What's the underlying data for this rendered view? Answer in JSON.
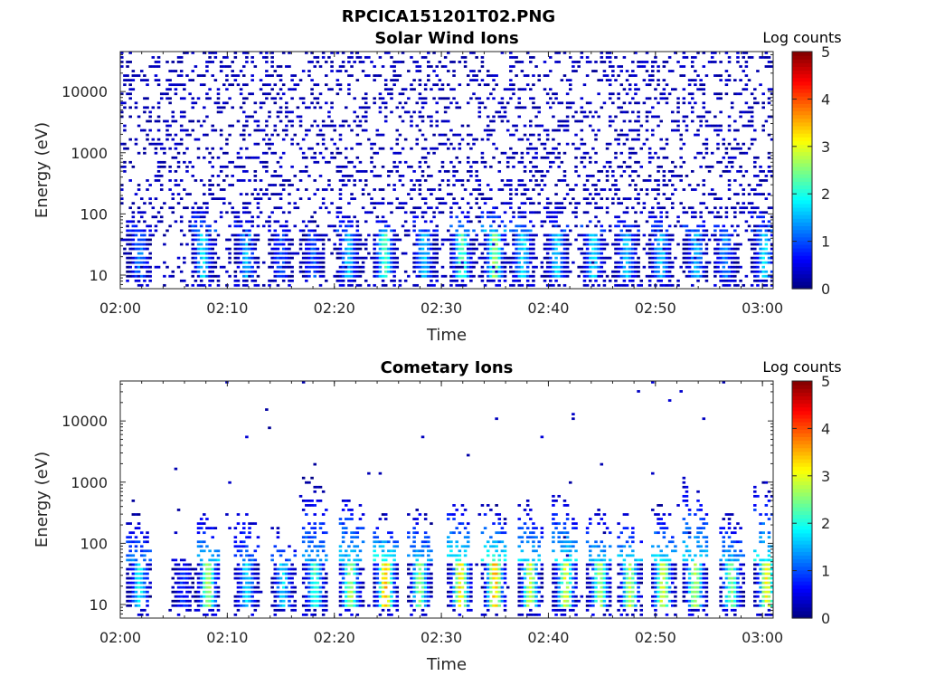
{
  "figure_title": "RPCICA151201T02.PNG",
  "chart_data": [
    {
      "type": "heatmap",
      "title": "Solar Wind Ions",
      "xlabel": "Time",
      "ylabel": "Energy (eV)",
      "x_ticks": [
        "02:00",
        "02:10",
        "02:20",
        "02:30",
        "02:40",
        "02:50",
        "03:00"
      ],
      "x_range_minutes": [
        0,
        61
      ],
      "y_ticks": [
        10,
        100,
        1000,
        10000
      ],
      "y_scale": "log",
      "y_range": [
        6,
        45000
      ],
      "colorbar": {
        "label": "Log counts",
        "ticks": [
          0,
          1,
          2,
          3,
          4,
          5
        ],
        "range": [
          0,
          5
        ],
        "colormap": "jet"
      },
      "pattern": {
        "background_noise_per_col": 12,
        "low_energy_band": [
          8,
          45
        ],
        "bursts": [
          {
            "t": 1.8,
            "peak": 1.2,
            "top": 120
          },
          {
            "t": 7.7,
            "peak": 1.8,
            "top": 170
          },
          {
            "t": 11.8,
            "peak": 1.5,
            "top": 100
          },
          {
            "t": 15.0,
            "peak": 1.0,
            "top": 90
          },
          {
            "t": 18.0,
            "peak": 1.0,
            "top": 80
          },
          {
            "t": 21.3,
            "peak": 1.6,
            "top": 130
          },
          {
            "t": 24.7,
            "peak": 2.2,
            "top": 90
          },
          {
            "t": 28.4,
            "peak": 1.6,
            "top": 120
          },
          {
            "t": 31.9,
            "peak": 2.3,
            "top": 160
          },
          {
            "t": 35.0,
            "peak": 2.6,
            "top": 180
          },
          {
            "t": 37.6,
            "peak": 1.8,
            "top": 200
          },
          {
            "t": 40.8,
            "peak": 1.7,
            "top": 150
          },
          {
            "t": 44.2,
            "peak": 1.8,
            "top": 110
          },
          {
            "t": 47.3,
            "peak": 1.6,
            "top": 120
          },
          {
            "t": 50.5,
            "peak": 1.7,
            "top": 130
          },
          {
            "t": 53.8,
            "peak": 1.5,
            "top": 130
          },
          {
            "t": 56.5,
            "peak": 1.3,
            "top": 110
          },
          {
            "t": 60.2,
            "peak": 1.8,
            "top": 160
          }
        ]
      }
    },
    {
      "type": "heatmap",
      "title": "Cometary Ions",
      "xlabel": "Time",
      "ylabel": "Energy (eV)",
      "x_ticks": [
        "02:00",
        "02:10",
        "02:20",
        "02:30",
        "02:40",
        "02:50",
        "03:00"
      ],
      "x_range_minutes": [
        0,
        61
      ],
      "y_ticks": [
        10,
        100,
        1000,
        10000
      ],
      "y_scale": "log",
      "y_range": [
        6,
        45000
      ],
      "colorbar": {
        "label": "Log counts",
        "ticks": [
          0,
          1,
          2,
          3,
          4,
          5
        ],
        "range": [
          0,
          5
        ],
        "colormap": "jet"
      },
      "pattern": {
        "background_noise_per_col": 0.3,
        "low_energy_band": [
          8,
          45
        ],
        "bursts": [
          {
            "t": 1.8,
            "peak": 1.9,
            "top": 300
          },
          {
            "t": 5.9,
            "peak": 0.8,
            "top": 60
          },
          {
            "t": 8.2,
            "peak": 2.7,
            "top": 320
          },
          {
            "t": 11.8,
            "peak": 1.7,
            "top": 400
          },
          {
            "t": 15.2,
            "peak": 1.7,
            "top": 200
          },
          {
            "t": 18.2,
            "peak": 2.1,
            "top": 1200
          },
          {
            "t": 21.5,
            "peak": 2.7,
            "top": 800
          },
          {
            "t": 24.8,
            "peak": 3.5,
            "top": 300
          },
          {
            "t": 28.0,
            "peak": 2.6,
            "top": 400
          },
          {
            "t": 31.8,
            "peak": 3.3,
            "top": 500
          },
          {
            "t": 35.0,
            "peak": 3.5,
            "top": 450
          },
          {
            "t": 38.3,
            "peak": 2.9,
            "top": 500
          },
          {
            "t": 41.6,
            "peak": 3.0,
            "top": 600
          },
          {
            "t": 44.8,
            "peak": 2.7,
            "top": 400
          },
          {
            "t": 47.6,
            "peak": 2.8,
            "top": 300
          },
          {
            "t": 50.7,
            "peak": 3.0,
            "top": 450
          },
          {
            "t": 53.7,
            "peak": 2.8,
            "top": 1200
          },
          {
            "t": 57.1,
            "peak": 2.5,
            "top": 300
          },
          {
            "t": 60.4,
            "peak": 3.1,
            "top": 1000
          }
        ]
      }
    }
  ]
}
